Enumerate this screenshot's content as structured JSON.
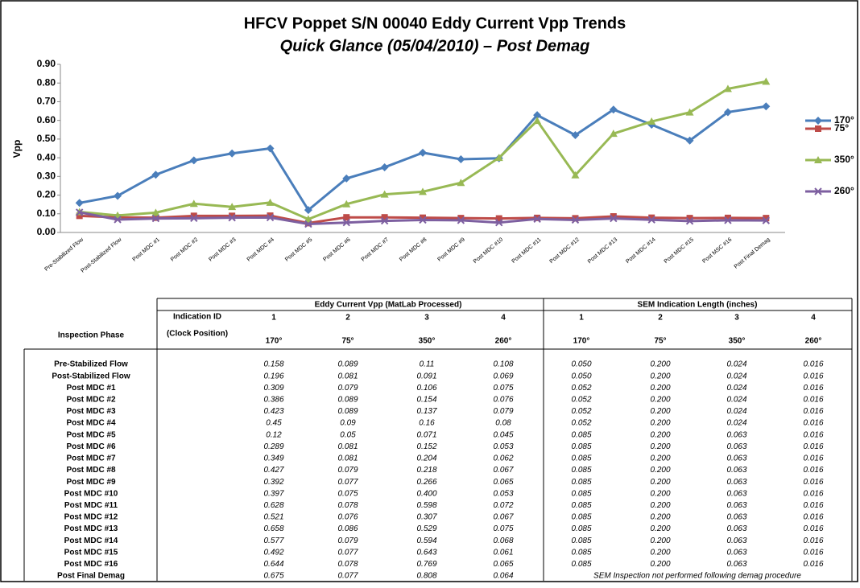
{
  "chart_data": {
    "type": "line",
    "title": "HFCV Poppet S/N 00040 Eddy Current Vpp Trends",
    "subtitle": "Quick Glance (05/04/2010) – Post Demag",
    "y_label": "Vpp",
    "categories": [
      "Pre-Stabilized Flow",
      "Post-Stabilized Flow",
      "Post MDC #1",
      "Post MDC #2",
      "Post MDC #3",
      "Post MDC #4",
      "Post MDC #5",
      "Post MDC #6",
      "Post MDC #7",
      "Post MDC #8",
      "Post MDC #9",
      "Post MDC #10",
      "Post MDC #11",
      "Post MDC #12",
      "Post MDC #13",
      "Post MDC #14",
      "Post MDC #15",
      "Post MSC #16",
      "Post Final Demag"
    ],
    "series": [
      {
        "name": "170°",
        "color": "#4a7ebb",
        "marker": "diamond",
        "values": [
          0.158,
          0.196,
          0.309,
          0.386,
          0.423,
          0.45,
          0.12,
          0.289,
          0.349,
          0.427,
          0.392,
          0.397,
          0.628,
          0.521,
          0.658,
          0.577,
          0.492,
          0.644,
          0.675
        ]
      },
      {
        "name": "75°",
        "color": "#be4b48",
        "marker": "square",
        "values": [
          0.089,
          0.081,
          0.079,
          0.089,
          0.089,
          0.09,
          0.05,
          0.081,
          0.081,
          0.079,
          0.077,
          0.075,
          0.078,
          0.076,
          0.086,
          0.079,
          0.077,
          0.078,
          0.077
        ]
      },
      {
        "name": "350°",
        "color": "#98b954",
        "marker": "triangle",
        "values": [
          0.11,
          0.091,
          0.106,
          0.154,
          0.137,
          0.16,
          0.071,
          0.152,
          0.204,
          0.218,
          0.266,
          0.4,
          0.598,
          0.307,
          0.529,
          0.594,
          0.643,
          0.769,
          0.808
        ]
      },
      {
        "name": "260°",
        "color": "#7d5fa0",
        "marker": "x",
        "values": [
          0.108,
          0.069,
          0.075,
          0.076,
          0.079,
          0.08,
          0.045,
          0.053,
          0.062,
          0.067,
          0.065,
          0.053,
          0.072,
          0.067,
          0.075,
          0.068,
          0.061,
          0.065,
          0.064
        ]
      }
    ],
    "ylim": [
      0,
      0.9
    ],
    "yticks": [
      {
        "value": 0,
        "label": "0.00"
      },
      {
        "value": 0.1,
        "label": "0.10"
      },
      {
        "value": 0.2,
        "label": "0.20"
      },
      {
        "value": 0.3,
        "label": "0.30"
      },
      {
        "value": 0.4,
        "label": "0.40"
      },
      {
        "value": 0.5,
        "label": "0.50"
      },
      {
        "value": 0.6,
        "label": "0.60"
      },
      {
        "value": 0.7,
        "label": "0.70"
      },
      {
        "value": 0.8,
        "label": "0.80"
      },
      {
        "value": 0.9,
        "label": "0.90"
      }
    ],
    "legend": "right"
  },
  "table": {
    "group_headers": [
      "Eddy Current Vpp (MatLab Processed)",
      "SEM Indication Length (inches)"
    ],
    "id_label": "Indication ID",
    "ids": [
      1,
      2,
      3,
      4,
      1,
      2,
      3,
      4
    ],
    "phase_label": "Inspection Phase",
    "clock_label": "(Clock Position)",
    "clock": [
      "170°",
      "75°",
      "350°",
      "260°",
      "170°",
      "75°",
      "350°",
      "260°"
    ],
    "rows": [
      {
        "phase": "Pre-Stabilized Flow",
        "values": [
          "0.158",
          "0.089",
          "0.11",
          "0.108",
          "0.050",
          "0.200",
          "0.024",
          "0.016"
        ]
      },
      {
        "phase": "Post-Stabilized Flow",
        "values": [
          "0.196",
          "0.081",
          "0.091",
          "0.069",
          "0.050",
          "0.200",
          "0.024",
          "0.016"
        ]
      },
      {
        "phase": "Post MDC #1",
        "values": [
          "0.309",
          "0.079",
          "0.106",
          "0.075",
          "0.052",
          "0.200",
          "0.024",
          "0.016"
        ]
      },
      {
        "phase": "Post MDC #2",
        "values": [
          "0.386",
          "0.089",
          "0.154",
          "0.076",
          "0.052",
          "0.200",
          "0.024",
          "0.016"
        ]
      },
      {
        "phase": "Post MDC #3",
        "values": [
          "0.423",
          "0.089",
          "0.137",
          "0.079",
          "0.052",
          "0.200",
          "0.024",
          "0.016"
        ]
      },
      {
        "phase": "Post MDC #4",
        "values": [
          "0.45",
          "0.09",
          "0.16",
          "0.08",
          "0.052",
          "0.200",
          "0.024",
          "0.016"
        ]
      },
      {
        "phase": "Post MDC #5",
        "values": [
          "0.12",
          "0.05",
          "0.071",
          "0.045",
          "0.085",
          "0.200",
          "0.063",
          "0.016"
        ]
      },
      {
        "phase": "Post MDC #6",
        "values": [
          "0.289",
          "0.081",
          "0.152",
          "0.053",
          "0.085",
          "0.200",
          "0.063",
          "0.016"
        ]
      },
      {
        "phase": "Post MDC #7",
        "values": [
          "0.349",
          "0.081",
          "0.204",
          "0.062",
          "0.085",
          "0.200",
          "0.063",
          "0.016"
        ]
      },
      {
        "phase": "Post MDC #8",
        "values": [
          "0.427",
          "0.079",
          "0.218",
          "0.067",
          "0.085",
          "0.200",
          "0.063",
          "0.016"
        ]
      },
      {
        "phase": "Post MDC #9",
        "values": [
          "0.392",
          "0.077",
          "0.266",
          "0.065",
          "0.085",
          "0.200",
          "0.063",
          "0.016"
        ]
      },
      {
        "phase": "Post MDC #10",
        "values": [
          "0.397",
          "0.075",
          "0.400",
          "0.053",
          "0.085",
          "0.200",
          "0.063",
          "0.016"
        ]
      },
      {
        "phase": "Post MDC #11",
        "values": [
          "0.628",
          "0.078",
          "0.598",
          "0.072",
          "0.085",
          "0.200",
          "0.063",
          "0.016"
        ]
      },
      {
        "phase": "Post MDC #12",
        "values": [
          "0.521",
          "0.076",
          "0.307",
          "0.067",
          "0.085",
          "0.200",
          "0.063",
          "0.016"
        ]
      },
      {
        "phase": "Post MDC #13",
        "values": [
          "0.658",
          "0.086",
          "0.529",
          "0.075",
          "0.085",
          "0.200",
          "0.063",
          "0.016"
        ]
      },
      {
        "phase": "Post MDC #14",
        "values": [
          "0.577",
          "0.079",
          "0.594",
          "0.068",
          "0.085",
          "0.200",
          "0.063",
          "0.016"
        ]
      },
      {
        "phase": "Post MDC #15",
        "values": [
          "0.492",
          "0.077",
          "0.643",
          "0.061",
          "0.085",
          "0.200",
          "0.063",
          "0.016"
        ]
      },
      {
        "phase": "Post MDC #16",
        "values": [
          "0.644",
          "0.078",
          "0.769",
          "0.065",
          "0.085",
          "0.200",
          "0.063",
          "0.016"
        ]
      },
      {
        "phase": "Post Final Demag",
        "values": [
          "0.675",
          "0.077",
          "0.808",
          "0.064"
        ],
        "note": "SEM Inspection not performed following demag procedure"
      }
    ]
  }
}
